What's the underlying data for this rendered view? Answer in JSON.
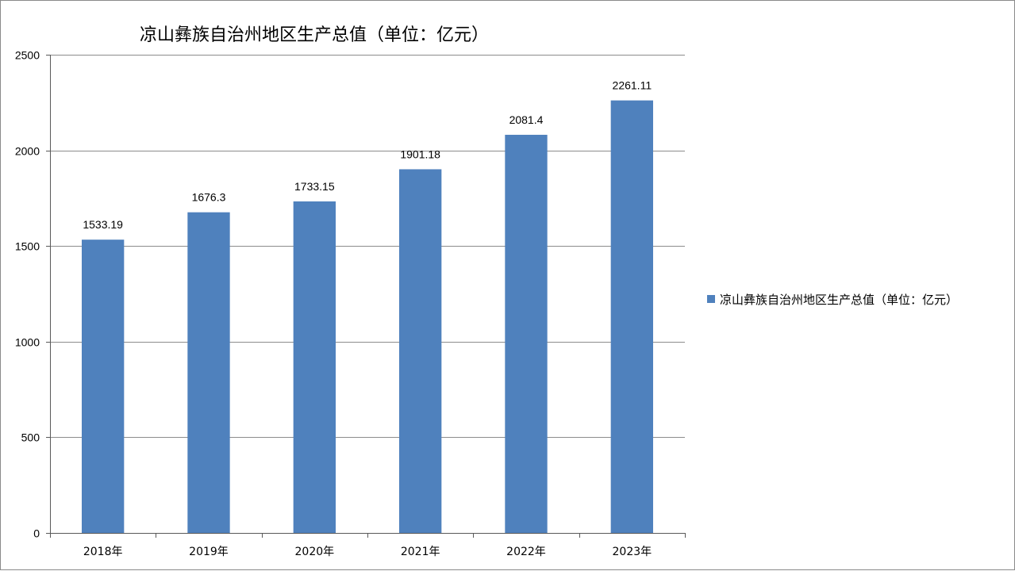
{
  "chart_data": {
    "type": "bar",
    "title": "凉山彝族自治州地区生产总值（单位：亿元）",
    "xlabel": "",
    "ylabel": "",
    "categories": [
      "2018年",
      "2019年",
      "2020年",
      "2021年",
      "2022年",
      "2023年"
    ],
    "series": [
      {
        "name": "凉山彝族自治州地区生产总值（单位：亿元）",
        "values": [
          1533.19,
          1676.3,
          1733.15,
          1901.18,
          2081.4,
          2261.11
        ],
        "data_labels": [
          "1533.19",
          "1676.3",
          "1733.15",
          "1901.18",
          "2081.4",
          "2261.11"
        ],
        "color": "#4f81bd"
      }
    ],
    "ylim": [
      0,
      2500
    ],
    "yticks": [
      0,
      500,
      1000,
      1500,
      2000,
      2500
    ],
    "grid": true,
    "legend_position": "right",
    "colors": {
      "gridline": "#8c8c8c",
      "axis": "#595959"
    }
  }
}
